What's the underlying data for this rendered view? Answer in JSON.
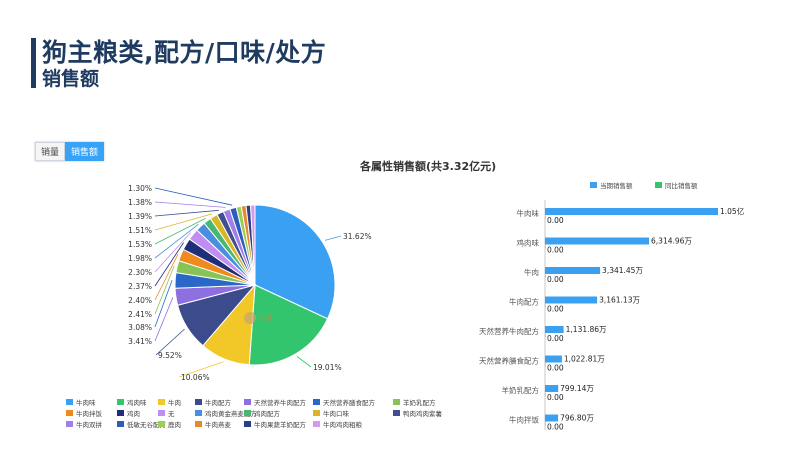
{
  "header": {
    "title": "狗主粮类,配方/口味/处方",
    "subtitle": "销售额"
  },
  "toggle": [
    "销量",
    "销售额"
  ],
  "chart_data": [
    {
      "type": "pie",
      "title": "各属性销售额(共3.32亿元)",
      "categories": [
        "牛肉味",
        "鸡肉味",
        "牛肉",
        "牛肉配方",
        "天然营养牛肉配方",
        "天然营养膳食配方",
        "羊奶乳配方",
        "牛肉拌饭",
        "鸡肉",
        "无",
        "鸡肉黄金燕麦配方",
        "鸡肉配方",
        "牛肉口味",
        "鸭肉鸡肉紫薯",
        "牛肉双拼",
        "低敏无谷配方",
        "鹿肉",
        "牛肉燕麦",
        "牛肉果蔬羊奶配方",
        "牛肉鸡肉粗粮"
      ],
      "values": [
        31.62,
        19.01,
        10.06,
        9.52,
        3.41,
        3.08,
        2.41,
        2.4,
        2.37,
        2.3,
        1.98,
        1.53,
        1.51,
        1.39,
        1.38,
        1.3,
        1.0,
        0.95,
        0.9,
        0.88
      ],
      "labels": [
        "31.62%",
        "19.01%",
        "10.06%",
        "9.52%",
        "3.41%",
        "3.08%",
        "2.41%",
        "2.40%",
        "2.37%",
        "2.30%",
        "1.98%",
        "1.53%",
        "1.51%",
        "1.39%",
        "1.38%",
        "1.30%"
      ],
      "colors": [
        "#3aa0f2",
        "#33c46e",
        "#f2c828",
        "#3b4b8c",
        "#8e6fe0",
        "#2a68c8",
        "#86c456",
        "#f08a1e",
        "#1f2e7a",
        "#c08ef0",
        "#4a8ee0",
        "#48b870",
        "#d9b628",
        "#3f4f92",
        "#a17fe8",
        "#2c5dbe",
        "#9ccf5a",
        "#e8882a",
        "#2c3d88",
        "#d49be8"
      ],
      "legend_position": "bottom"
    },
    {
      "type": "bar",
      "orientation": "horizontal",
      "series": [
        {
          "name": "当期销售额",
          "color": "#3aa0f2",
          "values": [
            10500,
            6314.96,
            3341.45,
            3161.13,
            1131.86,
            1022.81,
            799.14,
            796.8
          ],
          "labels": [
            "1.05亿",
            "6,314.96万",
            "3,341.45万",
            "3,161.13万",
            "1,131.86万",
            "1,022.81万",
            "799.14万",
            "796.80万"
          ]
        },
        {
          "name": "同比销售额",
          "color": "#33c46e",
          "values": [
            0,
            0,
            0,
            0,
            0,
            0,
            0,
            0
          ],
          "labels": [
            "0.00",
            "0.00",
            "0.00",
            "0.00",
            "0.00",
            "0.00",
            "0.00",
            "0.00"
          ]
        }
      ],
      "categories": [
        "牛肉味",
        "鸡肉味",
        "牛肉",
        "牛肉配方",
        "天然营养牛肉配方",
        "天然营养膳食配方",
        "羊奶乳配方",
        "牛肉拌饭"
      ],
      "xlim": [
        0,
        10500
      ]
    }
  ]
}
